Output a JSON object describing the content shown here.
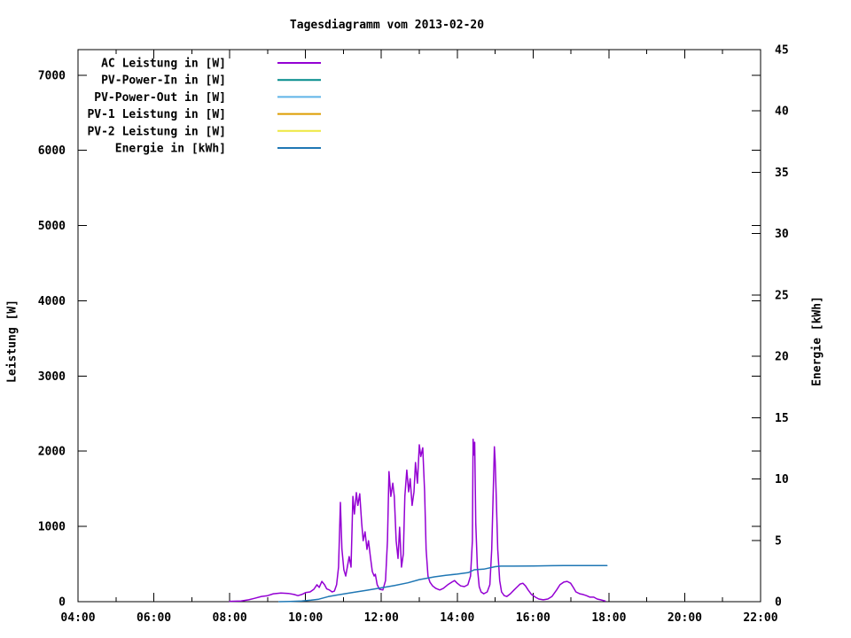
{
  "page": {
    "background": "#ffffff",
    "text_color": "#000000"
  },
  "chart_data": {
    "type": "line",
    "title": "Tagesdiagramm vom 2013-02-20",
    "ylabel": "Leistung [W]",
    "y2label": "Energie [kWh]",
    "legend_position": "top-left-inside",
    "grid": false,
    "axes": {
      "x": {
        "min": 4,
        "max": 22,
        "major_ticks": [
          {
            "value": 4,
            "label": "04:00"
          },
          {
            "value": 6,
            "label": "06:00"
          },
          {
            "value": 8,
            "label": "08:00"
          },
          {
            "value": 10,
            "label": "10:00"
          },
          {
            "value": 12,
            "label": "12:00"
          },
          {
            "value": 14,
            "label": "14:00"
          },
          {
            "value": 16,
            "label": "16:00"
          },
          {
            "value": 18,
            "label": "18:00"
          },
          {
            "value": 20,
            "label": "20:00"
          },
          {
            "value": 22,
            "label": "22:00"
          }
        ],
        "minor_tick_values": [
          5,
          7,
          9,
          11,
          13,
          15,
          17,
          19,
          21
        ]
      },
      "y_left": {
        "min": 0,
        "max": 7340,
        "major_ticks": [
          {
            "value": 0,
            "label": "0"
          },
          {
            "value": 1000,
            "label": "1000"
          },
          {
            "value": 2000,
            "label": "2000"
          },
          {
            "value": 3000,
            "label": "3000"
          },
          {
            "value": 4000,
            "label": "4000"
          },
          {
            "value": 5000,
            "label": "5000"
          },
          {
            "value": 6000,
            "label": "6000"
          },
          {
            "value": 7000,
            "label": "7000"
          }
        ]
      },
      "y_right": {
        "min": 0,
        "max": 45,
        "major_ticks": [
          {
            "value": 0,
            "label": "0"
          },
          {
            "value": 5,
            "label": "5"
          },
          {
            "value": 10,
            "label": "10"
          },
          {
            "value": 15,
            "label": "15"
          },
          {
            "value": 20,
            "label": "20"
          },
          {
            "value": 25,
            "label": "25"
          },
          {
            "value": 30,
            "label": "30"
          },
          {
            "value": 35,
            "label": "35"
          },
          {
            "value": 40,
            "label": "40"
          },
          {
            "value": 45,
            "label": "45"
          }
        ]
      }
    },
    "series": [
      {
        "id": "ac-leistung",
        "label": "AC Leistung in [W]",
        "color": "#9400d3",
        "axis": "y_left",
        "points": [
          [
            8.0,
            5
          ],
          [
            8.3,
            10
          ],
          [
            8.5,
            25
          ],
          [
            8.66,
            45
          ],
          [
            8.84,
            70
          ],
          [
            9.0,
            80
          ],
          [
            9.15,
            105
          ],
          [
            9.35,
            115
          ],
          [
            9.55,
            110
          ],
          [
            9.7,
            95
          ],
          [
            9.8,
            80
          ],
          [
            9.9,
            95
          ],
          [
            10.0,
            120
          ],
          [
            10.12,
            130
          ],
          [
            10.22,
            165
          ],
          [
            10.3,
            225
          ],
          [
            10.36,
            190
          ],
          [
            10.43,
            270
          ],
          [
            10.5,
            225
          ],
          [
            10.56,
            170
          ],
          [
            10.63,
            155
          ],
          [
            10.7,
            130
          ],
          [
            10.76,
            140
          ],
          [
            10.82,
            225
          ],
          [
            10.87,
            460
          ],
          [
            10.92,
            1320
          ],
          [
            10.96,
            700
          ],
          [
            11.01,
            425
          ],
          [
            11.06,
            340
          ],
          [
            11.11,
            480
          ],
          [
            11.15,
            600
          ],
          [
            11.2,
            460
          ],
          [
            11.25,
            1400
          ],
          [
            11.29,
            1165
          ],
          [
            11.34,
            1450
          ],
          [
            11.38,
            1280
          ],
          [
            11.43,
            1435
          ],
          [
            11.48,
            1045
          ],
          [
            11.52,
            810
          ],
          [
            11.57,
            930
          ],
          [
            11.62,
            695
          ],
          [
            11.66,
            810
          ],
          [
            11.71,
            600
          ],
          [
            11.76,
            400
          ],
          [
            11.81,
            340
          ],
          [
            11.84,
            365
          ],
          [
            11.89,
            225
          ],
          [
            11.95,
            165
          ],
          [
            12.04,
            155
          ],
          [
            12.11,
            280
          ],
          [
            12.16,
            810
          ],
          [
            12.2,
            1730
          ],
          [
            12.25,
            1400
          ],
          [
            12.3,
            1575
          ],
          [
            12.34,
            1400
          ],
          [
            12.39,
            810
          ],
          [
            12.44,
            575
          ],
          [
            12.48,
            990
          ],
          [
            12.53,
            460
          ],
          [
            12.58,
            635
          ],
          [
            12.62,
            1400
          ],
          [
            12.67,
            1750
          ],
          [
            12.72,
            1460
          ],
          [
            12.76,
            1635
          ],
          [
            12.81,
            1280
          ],
          [
            12.86,
            1460
          ],
          [
            12.9,
            1850
          ],
          [
            12.95,
            1575
          ],
          [
            13.0,
            2085
          ],
          [
            13.04,
            1930
          ],
          [
            13.09,
            2045
          ],
          [
            13.14,
            1460
          ],
          [
            13.18,
            695
          ],
          [
            13.23,
            340
          ],
          [
            13.28,
            260
          ],
          [
            13.35,
            210
          ],
          [
            13.44,
            175
          ],
          [
            13.54,
            155
          ],
          [
            13.63,
            175
          ],
          [
            13.75,
            225
          ],
          [
            13.86,
            260
          ],
          [
            13.93,
            280
          ],
          [
            14.0,
            245
          ],
          [
            14.09,
            210
          ],
          [
            14.19,
            200
          ],
          [
            14.28,
            225
          ],
          [
            14.35,
            340
          ],
          [
            14.4,
            810
          ],
          [
            14.42,
            2160
          ],
          [
            14.44,
            1950
          ],
          [
            14.46,
            2120
          ],
          [
            14.49,
            1045
          ],
          [
            14.53,
            460
          ],
          [
            14.58,
            200
          ],
          [
            14.63,
            130
          ],
          [
            14.7,
            105
          ],
          [
            14.79,
            130
          ],
          [
            14.86,
            225
          ],
          [
            14.91,
            695
          ],
          [
            14.96,
            1635
          ],
          [
            14.98,
            2060
          ],
          [
            15.0,
            1870
          ],
          [
            15.03,
            1400
          ],
          [
            15.07,
            695
          ],
          [
            15.12,
            280
          ],
          [
            15.17,
            130
          ],
          [
            15.24,
            80
          ],
          [
            15.31,
            70
          ],
          [
            15.4,
            105
          ],
          [
            15.5,
            155
          ],
          [
            15.59,
            200
          ],
          [
            15.66,
            235
          ],
          [
            15.73,
            245
          ],
          [
            15.8,
            210
          ],
          [
            15.87,
            155
          ],
          [
            15.96,
            95
          ],
          [
            16.06,
            60
          ],
          [
            16.15,
            35
          ],
          [
            16.27,
            25
          ],
          [
            16.39,
            35
          ],
          [
            16.5,
            70
          ],
          [
            16.62,
            155
          ],
          [
            16.71,
            225
          ],
          [
            16.81,
            260
          ],
          [
            16.9,
            270
          ],
          [
            16.99,
            245
          ],
          [
            17.06,
            190
          ],
          [
            17.13,
            130
          ],
          [
            17.23,
            105
          ],
          [
            17.32,
            95
          ],
          [
            17.41,
            80
          ],
          [
            17.5,
            60
          ],
          [
            17.6,
            60
          ],
          [
            17.69,
            35
          ],
          [
            17.78,
            25
          ],
          [
            17.9,
            10
          ]
        ]
      },
      {
        "id": "pv-power-in",
        "label": "PV-Power-In in [W]",
        "color": "#008b8b",
        "axis": "y_left",
        "points": []
      },
      {
        "id": "pv-power-out",
        "label": "PV-Power-Out in [W]",
        "color": "#5fb4e8",
        "axis": "y_left",
        "points": []
      },
      {
        "id": "pv1-leistung",
        "label": "PV-1 Leistung in [W]",
        "color": "#dd9c00",
        "axis": "y_left",
        "points": []
      },
      {
        "id": "pv2-leistung",
        "label": "PV-2 Leistung in [W]",
        "color": "#ede73e",
        "axis": "y_left",
        "points": []
      },
      {
        "id": "energie",
        "label": "Energie in [kWh]",
        "color": "#1f77b4",
        "axis": "y_right",
        "points": [
          [
            9.3,
            0
          ],
          [
            9.6,
            0.02
          ],
          [
            9.9,
            0.06
          ],
          [
            10.15,
            0.12
          ],
          [
            10.35,
            0.2
          ],
          [
            10.6,
            0.41
          ],
          [
            10.85,
            0.55
          ],
          [
            11.1,
            0.68
          ],
          [
            11.3,
            0.77
          ],
          [
            11.6,
            0.92
          ],
          [
            12.0,
            1.13
          ],
          [
            12.35,
            1.32
          ],
          [
            12.7,
            1.54
          ],
          [
            13.0,
            1.8
          ],
          [
            13.4,
            2.02
          ],
          [
            13.7,
            2.15
          ],
          [
            14.0,
            2.25
          ],
          [
            14.3,
            2.38
          ],
          [
            14.45,
            2.6
          ],
          [
            14.7,
            2.65
          ],
          [
            15.0,
            2.85
          ],
          [
            15.15,
            2.9
          ],
          [
            15.5,
            2.9
          ],
          [
            16.0,
            2.91
          ],
          [
            16.5,
            2.93
          ],
          [
            17.0,
            2.95
          ],
          [
            17.5,
            2.95
          ],
          [
            17.95,
            2.95
          ]
        ]
      }
    ]
  }
}
